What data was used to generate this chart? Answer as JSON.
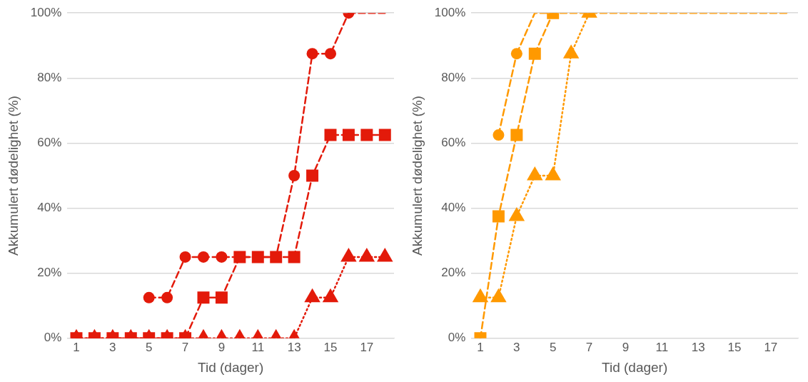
{
  "chart_data": [
    {
      "type": "line",
      "xlabel": "Tid (dager)",
      "ylabel": "Akkumulert dødelighet (%)",
      "xlim": [
        0.5,
        18.5
      ],
      "xticks": [
        1,
        3,
        5,
        7,
        9,
        11,
        13,
        15,
        17
      ],
      "ylim": [
        0,
        100
      ],
      "yticks": [
        {
          "value": 0,
          "label": "0%"
        },
        {
          "value": 20,
          "label": "20%"
        },
        {
          "value": 40,
          "label": "40%"
        },
        {
          "value": 60,
          "label": "60%"
        },
        {
          "value": 80,
          "label": "80%"
        },
        {
          "value": 100,
          "label": "100%"
        }
      ],
      "grid": "y",
      "legend": false,
      "series": [
        {
          "color": "#e31a0a",
          "marker": "circle",
          "line_style": "dashed",
          "x": [
            5,
            6,
            7,
            8,
            9,
            10,
            11,
            12,
            13,
            14,
            15,
            16
          ],
          "values": [
            12.5,
            12.5,
            25,
            25,
            25,
            25,
            25,
            25,
            50,
            87.5,
            87.5,
            100
          ]
        },
        {
          "color": "#e31a0a",
          "marker": "none",
          "line_style": "dashed",
          "x": [
            16,
            17,
            18
          ],
          "values": [
            100,
            100,
            100
          ]
        },
        {
          "color": "#e31a0a",
          "marker": "square",
          "line_style": "dashed",
          "x": [
            1,
            2,
            3,
            4,
            5,
            6,
            7,
            8,
            9,
            10,
            11,
            12,
            13,
            14,
            15,
            16,
            17,
            18
          ],
          "values": [
            0,
            0,
            0,
            0,
            0,
            0,
            0,
            12.5,
            12.5,
            25,
            25,
            25,
            25,
            50,
            62.5,
            62.5,
            62.5,
            62.5
          ]
        },
        {
          "color": "#e31a0a",
          "marker": "triangle",
          "line_style": "dotted",
          "x": [
            1,
            2,
            3,
            4,
            5,
            6,
            7,
            8,
            9,
            10,
            11,
            12,
            13,
            14,
            15,
            16,
            17,
            18
          ],
          "values": [
            0,
            0,
            0,
            0,
            0,
            0,
            0,
            0,
            0,
            0,
            0,
            0,
            0,
            12.5,
            12.5,
            25,
            25,
            25
          ]
        }
      ]
    },
    {
      "type": "line",
      "xlabel": "Tid (dager)",
      "ylabel": "Akkumulert dødelighet (%)",
      "xlim": [
        0.5,
        18.5
      ],
      "xticks": [
        1,
        3,
        5,
        7,
        9,
        11,
        13,
        15,
        17
      ],
      "ylim": [
        0,
        100
      ],
      "yticks": [
        {
          "value": 0,
          "label": "0%"
        },
        {
          "value": 20,
          "label": "20%"
        },
        {
          "value": 40,
          "label": "40%"
        },
        {
          "value": 60,
          "label": "60%"
        },
        {
          "value": 80,
          "label": "80%"
        },
        {
          "value": 100,
          "label": "100%"
        }
      ],
      "grid": "y",
      "legend": false,
      "series": [
        {
          "color": "#ff9900",
          "marker": "circle",
          "line_style": "dashed",
          "x": [
            2,
            3
          ],
          "values": [
            62.5,
            87.5
          ]
        },
        {
          "color": "#ff9900",
          "marker": "none",
          "line_style": "dashed",
          "x": [
            3,
            4,
            5,
            6,
            7,
            8,
            9,
            10,
            11,
            12,
            13,
            14,
            15,
            16,
            17,
            18
          ],
          "values": [
            87.5,
            100,
            100,
            100,
            100,
            100,
            100,
            100,
            100,
            100,
            100,
            100,
            100,
            100,
            100,
            100
          ]
        },
        {
          "color": "#ff9900",
          "marker": "square",
          "line_style": "dashed",
          "x": [
            1,
            2,
            3,
            4,
            5
          ],
          "values": [
            0,
            37.5,
            62.5,
            87.5,
            100
          ]
        },
        {
          "color": "#ff9900",
          "marker": "triangle",
          "line_style": "dotted",
          "x": [
            1,
            2,
            3,
            4,
            5,
            6,
            7
          ],
          "values": [
            12.5,
            12.5,
            37.5,
            50,
            50,
            87.5,
            100
          ]
        }
      ]
    }
  ]
}
